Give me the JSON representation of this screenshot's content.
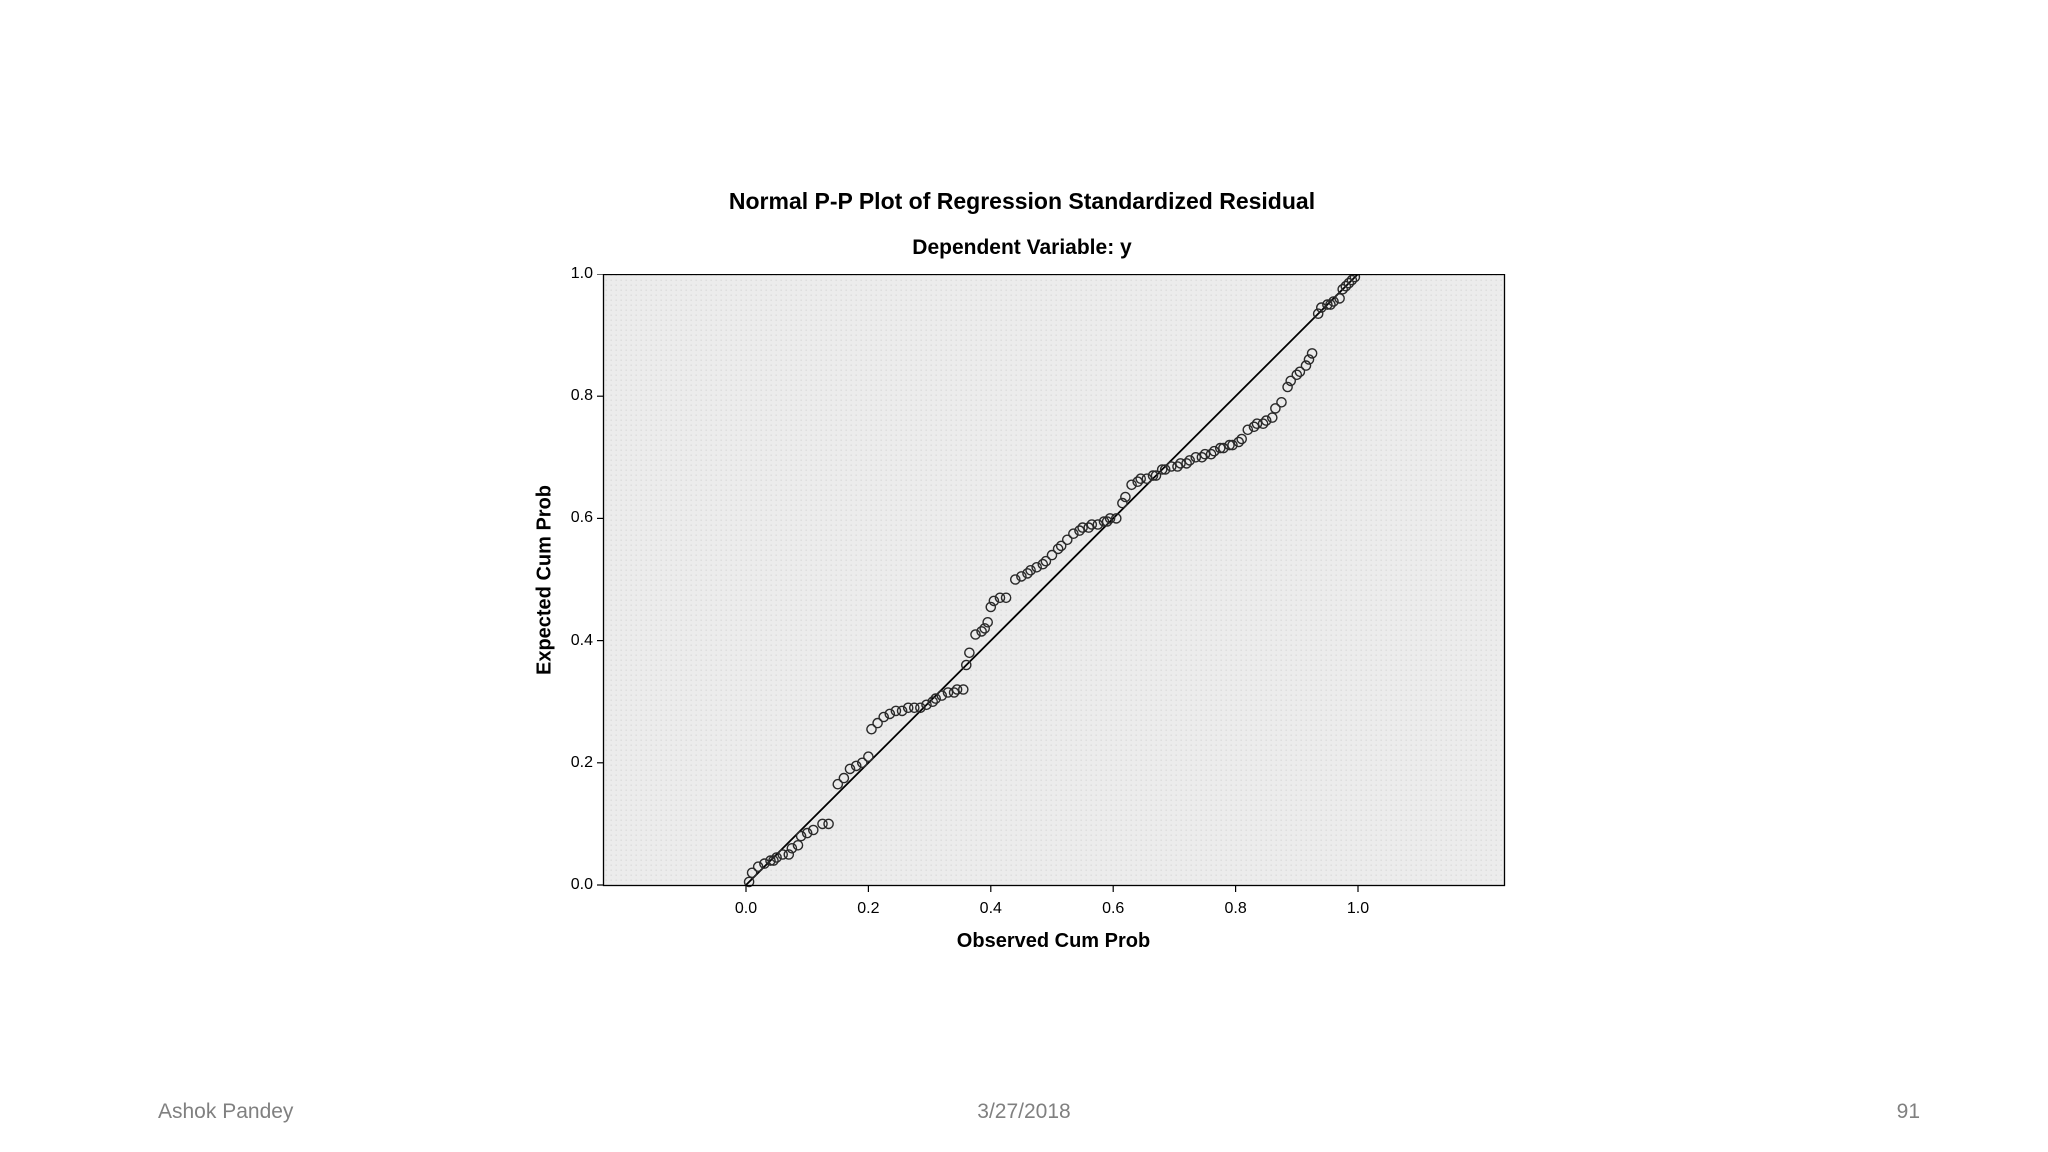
{
  "footer": {
    "author": "Ashok Pandey",
    "date": "3/27/2018",
    "page_number": "91"
  },
  "colors": {
    "plot_background": "#ececec",
    "plot_dot": "#dcdcdc",
    "marker_stroke": "#2a2a2a",
    "reference_line": "#000000",
    "footer_text": "#808080",
    "text": "#000000"
  },
  "chart_data": {
    "type": "scatter",
    "title": "Normal P-P Plot of Regression Standardized Residual",
    "subtitle": "Dependent Variable: y",
    "xlabel": "Observed Cum Prob",
    "ylabel": "Expected Cum Prob",
    "xlim": [
      0,
      1
    ],
    "ylim": [
      0,
      1
    ],
    "grid": false,
    "legend": false,
    "marker": "open-circle",
    "x_ticks": [
      0.0,
      0.2,
      0.4,
      0.6,
      0.8,
      1.0
    ],
    "y_ticks": [
      0.0,
      0.2,
      0.4,
      0.6,
      0.8,
      1.0
    ],
    "x_tick_labels": [
      "0.0",
      "0.2",
      "0.4",
      "0.6",
      "0.8",
      "1.0"
    ],
    "y_tick_labels": [
      "0.0",
      "0.2",
      "0.4",
      "0.6",
      "0.8",
      "1.0"
    ],
    "reference_line": {
      "from": [
        0,
        0
      ],
      "to": [
        1,
        1
      ]
    },
    "points": [
      [
        0.005,
        0.005
      ],
      [
        0.01,
        0.02
      ],
      [
        0.02,
        0.03
      ],
      [
        0.03,
        0.035
      ],
      [
        0.04,
        0.04
      ],
      [
        0.045,
        0.04
      ],
      [
        0.05,
        0.045
      ],
      [
        0.06,
        0.05
      ],
      [
        0.07,
        0.05
      ],
      [
        0.075,
        0.06
      ],
      [
        0.085,
        0.065
      ],
      [
        0.09,
        0.08
      ],
      [
        0.1,
        0.085
      ],
      [
        0.11,
        0.09
      ],
      [
        0.125,
        0.1
      ],
      [
        0.135,
        0.1
      ],
      [
        0.15,
        0.165
      ],
      [
        0.16,
        0.175
      ],
      [
        0.17,
        0.19
      ],
      [
        0.18,
        0.195
      ],
      [
        0.19,
        0.2
      ],
      [
        0.2,
        0.21
      ],
      [
        0.205,
        0.255
      ],
      [
        0.215,
        0.265
      ],
      [
        0.225,
        0.275
      ],
      [
        0.235,
        0.28
      ],
      [
        0.245,
        0.285
      ],
      [
        0.255,
        0.285
      ],
      [
        0.265,
        0.29
      ],
      [
        0.275,
        0.29
      ],
      [
        0.285,
        0.29
      ],
      [
        0.295,
        0.295
      ],
      [
        0.305,
        0.3
      ],
      [
        0.31,
        0.305
      ],
      [
        0.32,
        0.31
      ],
      [
        0.33,
        0.315
      ],
      [
        0.34,
        0.315
      ],
      [
        0.345,
        0.32
      ],
      [
        0.355,
        0.32
      ],
      [
        0.36,
        0.36
      ],
      [
        0.365,
        0.38
      ],
      [
        0.375,
        0.41
      ],
      [
        0.385,
        0.415
      ],
      [
        0.39,
        0.42
      ],
      [
        0.395,
        0.43
      ],
      [
        0.4,
        0.455
      ],
      [
        0.405,
        0.465
      ],
      [
        0.415,
        0.47
      ],
      [
        0.425,
        0.47
      ],
      [
        0.44,
        0.5
      ],
      [
        0.45,
        0.505
      ],
      [
        0.46,
        0.51
      ],
      [
        0.465,
        0.515
      ],
      [
        0.475,
        0.52
      ],
      [
        0.485,
        0.525
      ],
      [
        0.49,
        0.53
      ],
      [
        0.5,
        0.54
      ],
      [
        0.51,
        0.55
      ],
      [
        0.515,
        0.555
      ],
      [
        0.525,
        0.565
      ],
      [
        0.535,
        0.575
      ],
      [
        0.545,
        0.58
      ],
      [
        0.55,
        0.585
      ],
      [
        0.56,
        0.585
      ],
      [
        0.565,
        0.59
      ],
      [
        0.575,
        0.59
      ],
      [
        0.585,
        0.595
      ],
      [
        0.59,
        0.595
      ],
      [
        0.595,
        0.6
      ],
      [
        0.605,
        0.6
      ],
      [
        0.615,
        0.625
      ],
      [
        0.62,
        0.635
      ],
      [
        0.63,
        0.655
      ],
      [
        0.64,
        0.66
      ],
      [
        0.645,
        0.665
      ],
      [
        0.655,
        0.665
      ],
      [
        0.665,
        0.67
      ],
      [
        0.67,
        0.67
      ],
      [
        0.68,
        0.68
      ],
      [
        0.685,
        0.68
      ],
      [
        0.695,
        0.685
      ],
      [
        0.705,
        0.685
      ],
      [
        0.71,
        0.69
      ],
      [
        0.72,
        0.69
      ],
      [
        0.725,
        0.695
      ],
      [
        0.735,
        0.7
      ],
      [
        0.745,
        0.7
      ],
      [
        0.75,
        0.705
      ],
      [
        0.76,
        0.705
      ],
      [
        0.765,
        0.71
      ],
      [
        0.775,
        0.715
      ],
      [
        0.78,
        0.715
      ],
      [
        0.79,
        0.72
      ],
      [
        0.795,
        0.72
      ],
      [
        0.805,
        0.725
      ],
      [
        0.81,
        0.73
      ],
      [
        0.82,
        0.745
      ],
      [
        0.83,
        0.75
      ],
      [
        0.835,
        0.755
      ],
      [
        0.845,
        0.755
      ],
      [
        0.85,
        0.76
      ],
      [
        0.86,
        0.765
      ],
      [
        0.865,
        0.78
      ],
      [
        0.875,
        0.79
      ],
      [
        0.885,
        0.815
      ],
      [
        0.89,
        0.825
      ],
      [
        0.9,
        0.835
      ],
      [
        0.905,
        0.84
      ],
      [
        0.915,
        0.85
      ],
      [
        0.92,
        0.86
      ],
      [
        0.925,
        0.87
      ],
      [
        0.935,
        0.935
      ],
      [
        0.94,
        0.945
      ],
      [
        0.95,
        0.95
      ],
      [
        0.955,
        0.95
      ],
      [
        0.96,
        0.955
      ],
      [
        0.97,
        0.96
      ],
      [
        0.975,
        0.975
      ],
      [
        0.98,
        0.98
      ],
      [
        0.985,
        0.985
      ],
      [
        0.99,
        0.99
      ],
      [
        0.995,
        0.995
      ]
    ]
  }
}
